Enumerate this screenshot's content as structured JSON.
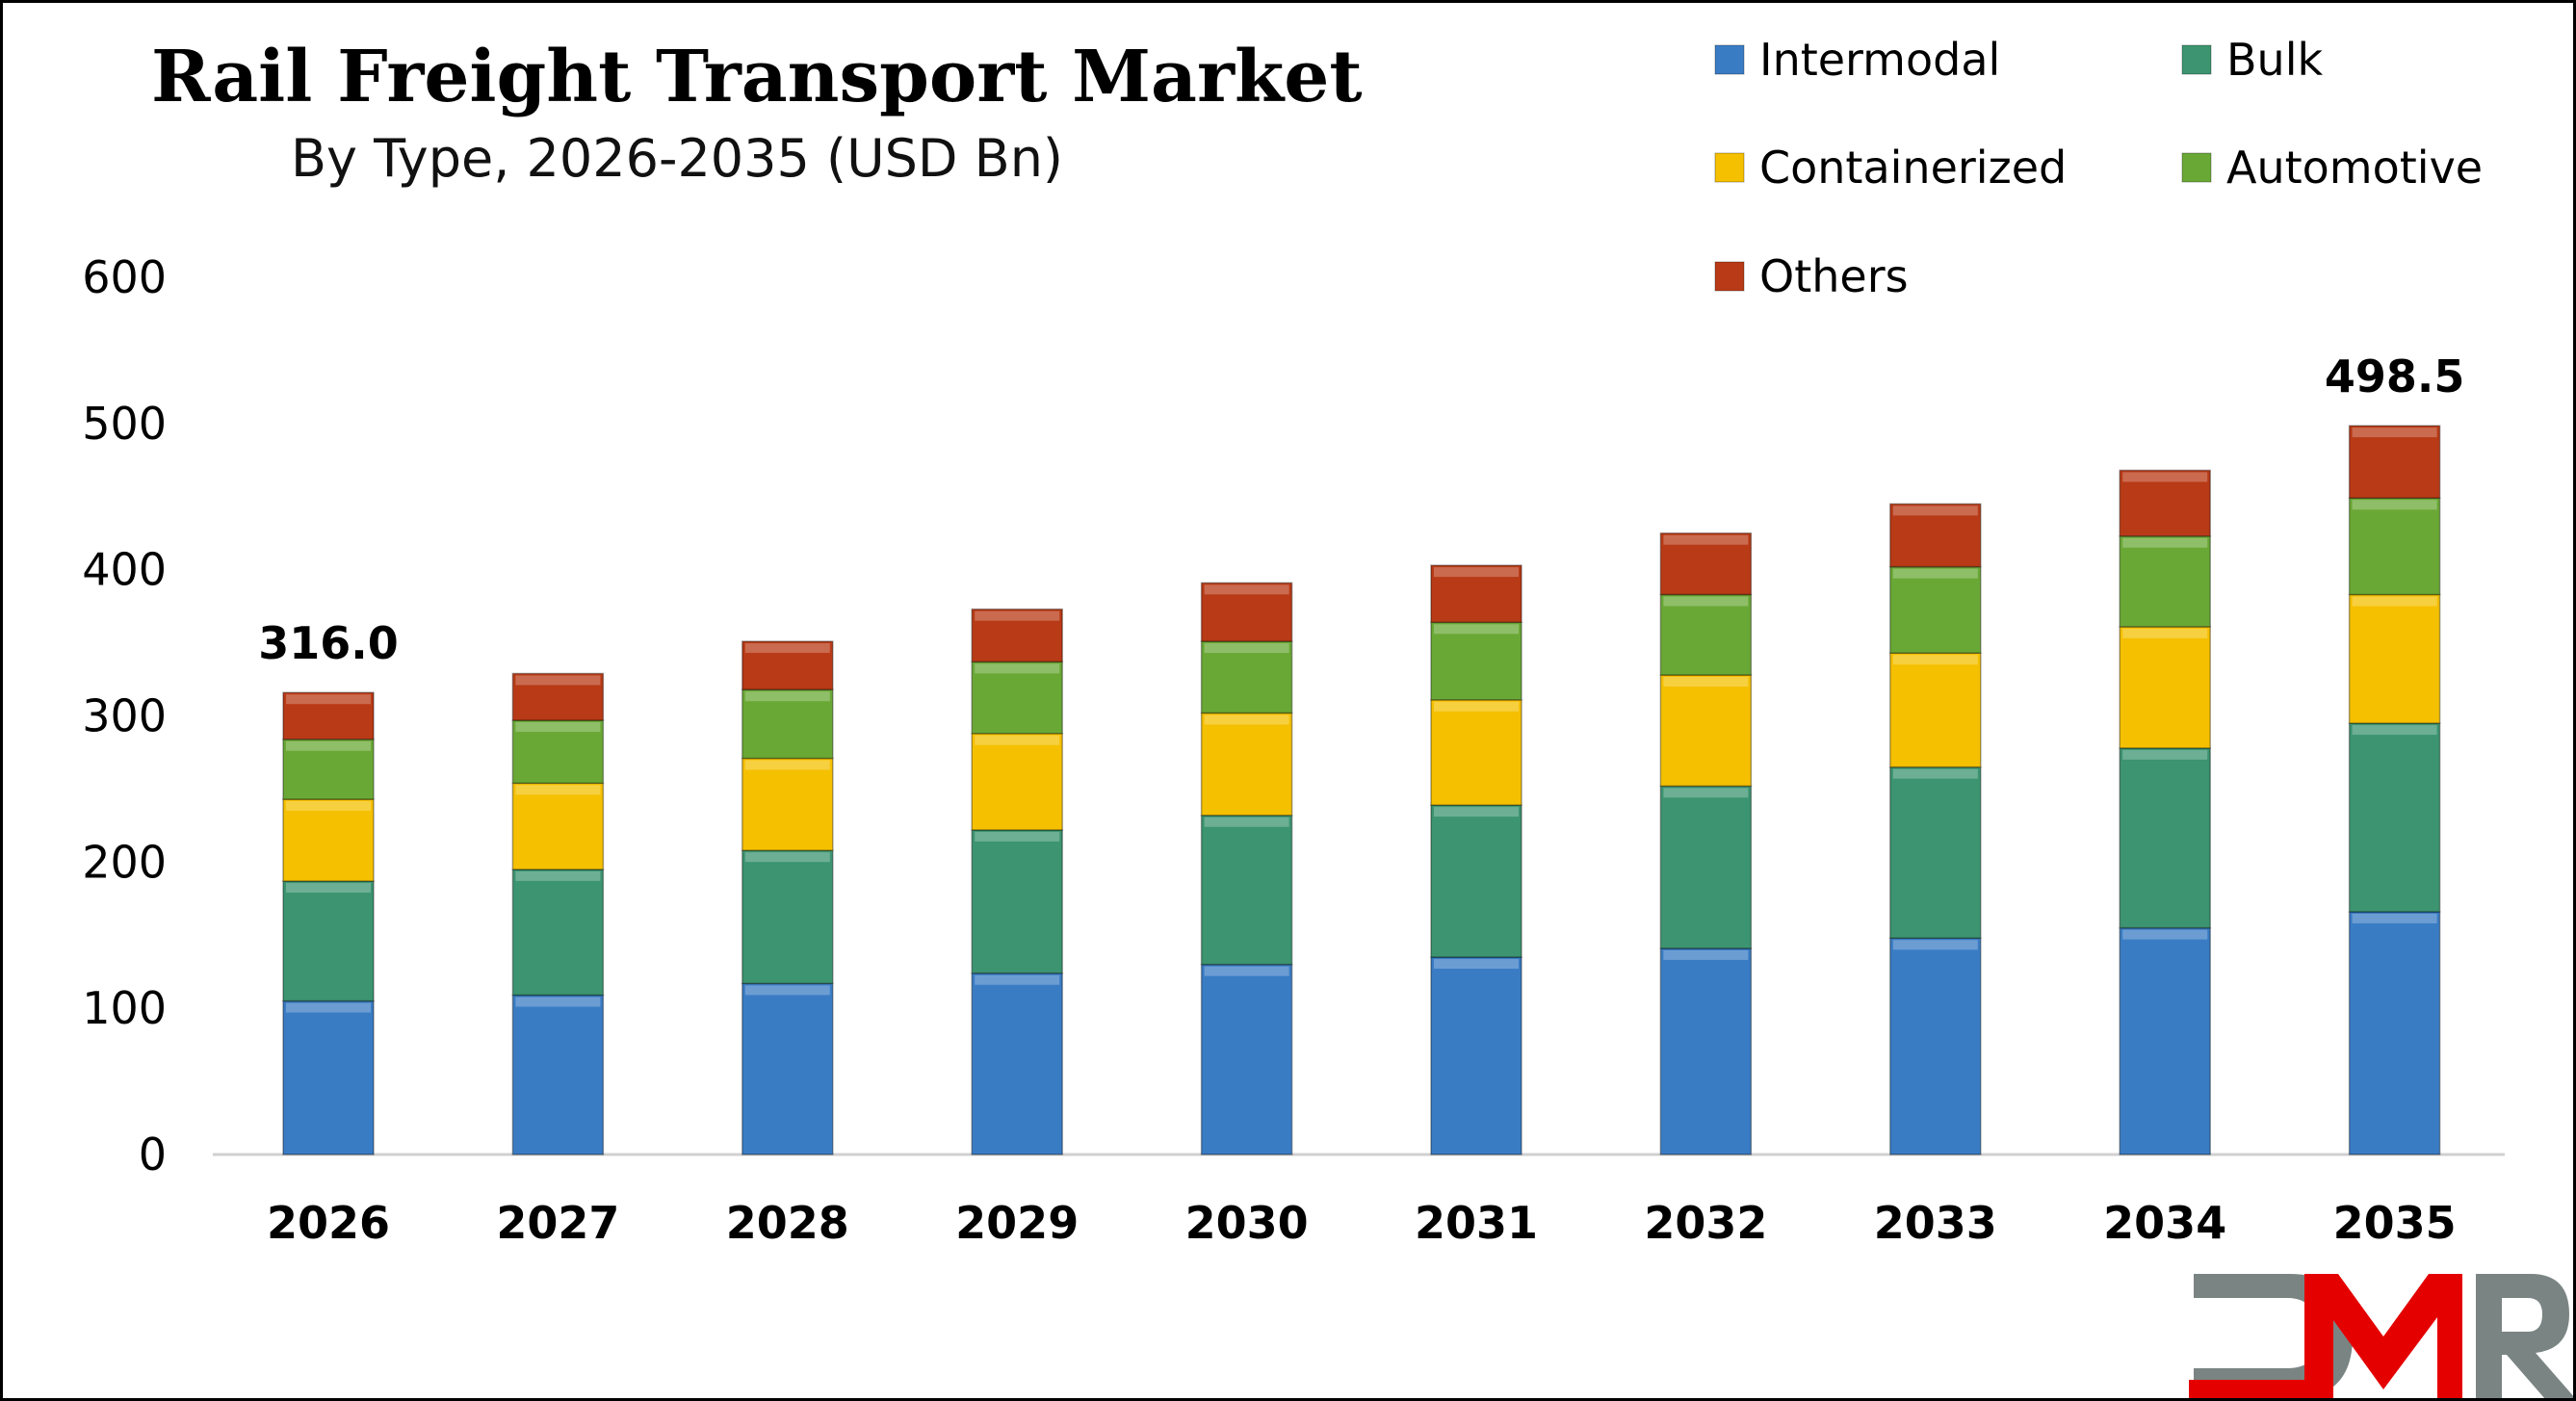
{
  "chart_data": {
    "type": "bar",
    "stacked": true,
    "title": "Rail Freight Transport Market",
    "subtitle": "By Type, 2026-2035 (USD Bn)",
    "xlabel": "",
    "ylabel": "",
    "ylim": [
      0,
      600
    ],
    "yticks": [
      "0",
      "100",
      "200",
      "300",
      "400",
      "500",
      "600"
    ],
    "grid": false,
    "legend_position": "top-right",
    "categories": [
      "2026",
      "2027",
      "2028",
      "2029",
      "2030",
      "2031",
      "2032",
      "2033",
      "2034",
      "2035"
    ],
    "series": [
      {
        "name": "Intermodal",
        "color": "#3a7cc4",
        "values": [
          105,
          109,
          117,
          124,
          130,
          135,
          141,
          148,
          155,
          166
        ]
      },
      {
        "name": "Bulk",
        "color": "#3c9470",
        "values": [
          82,
          86,
          91,
          98,
          102,
          104,
          111,
          117,
          123,
          129
        ]
      },
      {
        "name": "Containerized",
        "color": "#f5c000",
        "values": [
          56,
          59,
          63,
          66,
          70,
          72,
          76,
          78,
          83,
          88
        ]
      },
      {
        "name": "Automotive",
        "color": "#6aa836",
        "values": [
          41,
          43,
          47,
          49,
          49,
          53,
          55,
          59,
          62,
          66
        ]
      },
      {
        "name": "Others",
        "color": "#b83a16",
        "values": [
          32,
          32,
          33,
          36,
          40,
          39,
          42,
          43,
          45,
          49.5
        ]
      }
    ],
    "annotations": [
      {
        "category": "2026",
        "text": "316.0"
      },
      {
        "category": "2035",
        "text": "498.5"
      }
    ]
  },
  "logo": {
    "text": "DMR",
    "colors": [
      "#7a8483",
      "#e50000",
      "#7a8483"
    ]
  }
}
